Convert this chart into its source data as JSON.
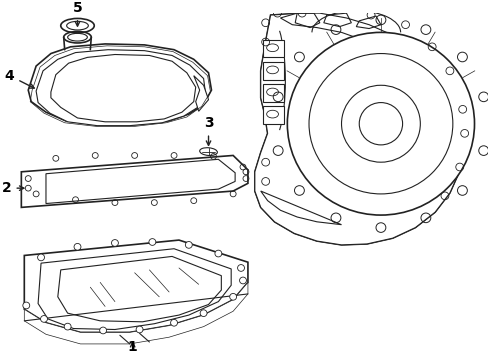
{
  "background_color": "#ffffff",
  "line_color": "#222222",
  "label_color": "#000000",
  "fig_width": 4.89,
  "fig_height": 3.6,
  "dpi": 100,
  "label_fontsize": 10
}
